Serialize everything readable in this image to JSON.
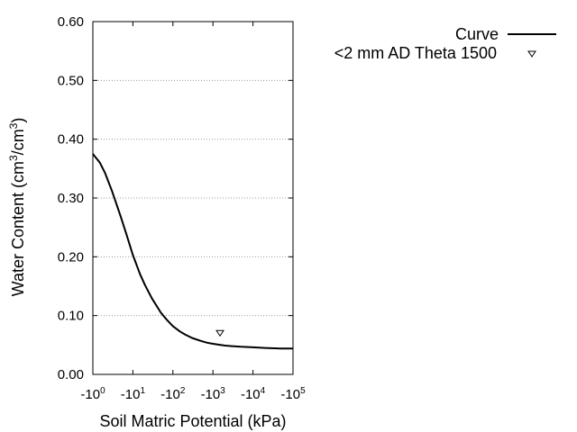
{
  "chart_data": {
    "type": "line",
    "xlabel": "Soil Matric Potential (kPa)",
    "ylabel_main": "Water Content (cm",
    "ylabel_sup1": "3",
    "ylabel_mid": "/cm",
    "ylabel_sup2": "3",
    "ylabel_end": ")",
    "x_scale": "log",
    "xlim": [
      -1,
      -100000
    ],
    "ylim": [
      0,
      0.6
    ],
    "x_ticks": [
      {
        "value": -1,
        "base": "-10",
        "exp": "0"
      },
      {
        "value": -10,
        "base": "-10",
        "exp": "1"
      },
      {
        "value": -100,
        "base": "-10",
        "exp": "2"
      },
      {
        "value": -1000,
        "base": "-10",
        "exp": "3"
      },
      {
        "value": -10000,
        "base": "-10",
        "exp": "4"
      },
      {
        "value": -100000,
        "base": "-10",
        "exp": "5"
      }
    ],
    "y_ticks": [
      {
        "value": 0.0,
        "label": "0.00"
      },
      {
        "value": 0.1,
        "label": "0.10"
      },
      {
        "value": 0.2,
        "label": "0.20"
      },
      {
        "value": 0.3,
        "label": "0.30"
      },
      {
        "value": 0.4,
        "label": "0.40"
      },
      {
        "value": 0.5,
        "label": "0.50"
      },
      {
        "value": 0.6,
        "label": "0.60"
      }
    ],
    "grid": "horizontal dotted",
    "legend_position": "top-right, outside plot",
    "series": [
      {
        "name": "Curve",
        "type": "line",
        "color": "#000000",
        "x": [
          -1,
          -1.5,
          -2,
          -3,
          -5,
          -7,
          -10,
          -15,
          -20,
          -30,
          -50,
          -70,
          -100,
          -150,
          -200,
          -300,
          -500,
          -700,
          -1000,
          -2000,
          -3000,
          -5000,
          -10000,
          -20000,
          -50000,
          -100000
        ],
        "y": [
          0.375,
          0.36,
          0.343,
          0.312,
          0.268,
          0.237,
          0.203,
          0.171,
          0.152,
          0.129,
          0.105,
          0.093,
          0.082,
          0.073,
          0.068,
          0.062,
          0.057,
          0.054,
          0.052,
          0.049,
          0.048,
          0.047,
          0.046,
          0.045,
          0.044,
          0.044
        ]
      },
      {
        "name": "<2 mm AD Theta 1500",
        "type": "scatter",
        "marker": "triangle-down",
        "color": "#000000",
        "x": [
          -1500
        ],
        "y": [
          0.07
        ]
      }
    ]
  }
}
